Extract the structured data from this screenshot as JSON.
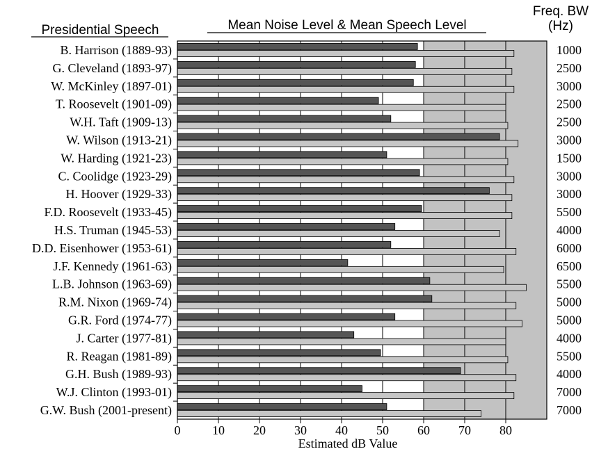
{
  "header": {
    "left_title": "Presidential  Speech",
    "center_title": "Mean Noise Level  &  Mean Speech Level",
    "right_title_line1": "Freq. BW",
    "right_title_line2": "(Hz)"
  },
  "chart_data": {
    "type": "bar",
    "orientation": "horizontal",
    "categories": [
      "B. Harrison (1889-93)",
      "G. Cleveland (1893-97)",
      "W. McKinley (1897-01)",
      "T. Roosevelt (1901-09)",
      "W.H. Taft (1909-13)",
      "W. Wilson (1913-21)",
      "W. Harding (1921-23)",
      "C. Coolidge (1923-29)",
      "H. Hoover (1929-33)",
      "F.D. Roosevelt (1933-45)",
      "H.S. Truman (1945-53)",
      "D.D. Eisenhower (1953-61)",
      "J.F. Kennedy (1961-63)",
      "L.B. Johnson (1963-69)",
      "R.M. Nixon (1969-74)",
      "G.R. Ford (1974-77)",
      "J. Carter (1977-81)",
      "R. Reagan (1981-89)",
      "G.H. Bush (1989-93)",
      "W.J. Clinton (1993-01)",
      "G.W. Bush (2001-present)"
    ],
    "series": [
      {
        "name": "Mean Noise Level",
        "color": "#555555",
        "values": [
          58.5,
          58,
          57.5,
          49,
          52,
          78.5,
          51,
          59,
          76,
          59.5,
          53,
          52,
          41.5,
          61.5,
          62,
          53,
          43,
          49.5,
          69,
          45,
          51
        ]
      },
      {
        "name": "Mean Speech Level",
        "color": "#c6c6c6",
        "values": [
          82,
          81.5,
          82,
          80,
          80.5,
          83,
          80.5,
          82,
          81.5,
          81.5,
          78.5,
          82.5,
          79.5,
          85,
          82.5,
          84,
          80,
          80.5,
          82.5,
          82,
          74
        ]
      }
    ],
    "freq_bw": [
      "1000",
      "2500",
      "3000",
      "2500",
      "2500",
      "3000",
      "1500",
      "3000",
      "3000",
      "5500",
      "4000",
      "6000",
      "6500",
      "5500",
      "5000",
      "5000",
      "4000",
      "5500",
      "4000",
      "7000",
      "7000"
    ],
    "xlabel": "Estimated  dB Value",
    "xlim": [
      0,
      90
    ],
    "xticks": [
      0,
      10,
      20,
      30,
      40,
      50,
      60,
      70,
      80
    ],
    "shaded_band_start": 60,
    "grid": true,
    "colors": {
      "shaded_band": "#c2c2c2",
      "gridline": "#000000"
    }
  }
}
